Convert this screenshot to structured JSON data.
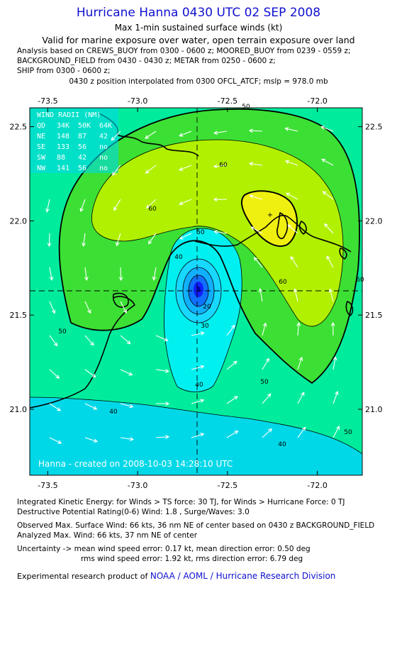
{
  "header": {
    "title": "Hurricane Hanna 0430 UTC 02 SEP 2008",
    "subtitle": "Max 1-min sustained surface winds (kt)",
    "valid": "Valid for marine exposure over water, open terrain exposure over land",
    "basis_line1": "Analysis based on  CREWS_BUOY from 0300 - 0600 z;  MOORED_BUOY from 0239 - 0559 z;",
    "basis_line2": "BACKGROUND_FIELD from 0430 - 0430 z;  METAR from 0250 - 0600 z;",
    "basis_line3": "SHIP from 0300 - 0600 z;",
    "position_note": "0430 z position interpolated from 0300 OFCL_ATCF; mslp = 978.0 mb"
  },
  "map": {
    "lon_ticks": [
      "-73.5",
      "-73.0",
      "-72.5",
      "-72.0"
    ],
    "lat_ticks": [
      "22.5",
      "22.0",
      "21.5",
      "21.0"
    ],
    "lon_range": [
      -73.6,
      -71.75
    ],
    "lat_range": [
      20.65,
      22.6
    ],
    "center": {
      "lon": -72.55,
      "lat": 21.55
    },
    "contour_labels": [
      "50",
      "60",
      "60",
      "50",
      "40",
      "30",
      "20",
      "60",
      "50",
      "50",
      "40",
      "40",
      "40",
      "50",
      "60"
    ],
    "credit": "Hanna - created on 2008-10-03 14:28:10 UTC",
    "colors": {
      "outer": "#00d8e8",
      "band40": "#00ec9c",
      "band50": "#3ce034",
      "band60": "#b0f000",
      "band66": "#f0f010",
      "core": "#00f0f0",
      "eye": "#1020ff"
    }
  },
  "wind_radii": {
    "title": "WIND RADII (NM)",
    "header": [
      "QD",
      "34K",
      "50K",
      "64K"
    ],
    "rows": [
      [
        "NE",
        "148",
        "87",
        "42"
      ],
      [
        "SE",
        "133",
        "56",
        "no"
      ],
      [
        "SW",
        "88",
        "42",
        "no"
      ],
      [
        "NW",
        "141",
        "56",
        "no"
      ]
    ]
  },
  "footer": {
    "ike": "Integrated Kinetic Energy:  for Winds > TS force: 30 TJ,  for Winds > Hurricane Force: 0 TJ",
    "dpr": "Destructive Potential Rating(0-6)   Wind: 1.8 , Surge/Waves: 3.0",
    "obs_max": "Observed Max. Surface Wind: 66 kts, 36 nm NE of center based on 0430 z BACKGROUND_FIELD",
    "ana_max": "Analyzed Max. Wind: 66 kts, 37 nm NE of center",
    "unc1": "Uncertainty -> mean wind speed error: 0.17 kt,   mean direction error: 0.50 deg",
    "unc2": "rms wind speed error: 1.92 kt,   rms direction error: 6.79 deg",
    "product_prefix": "Experimental research product of ",
    "product_link": "NOAA / AOML / Hurricane Research Division"
  }
}
